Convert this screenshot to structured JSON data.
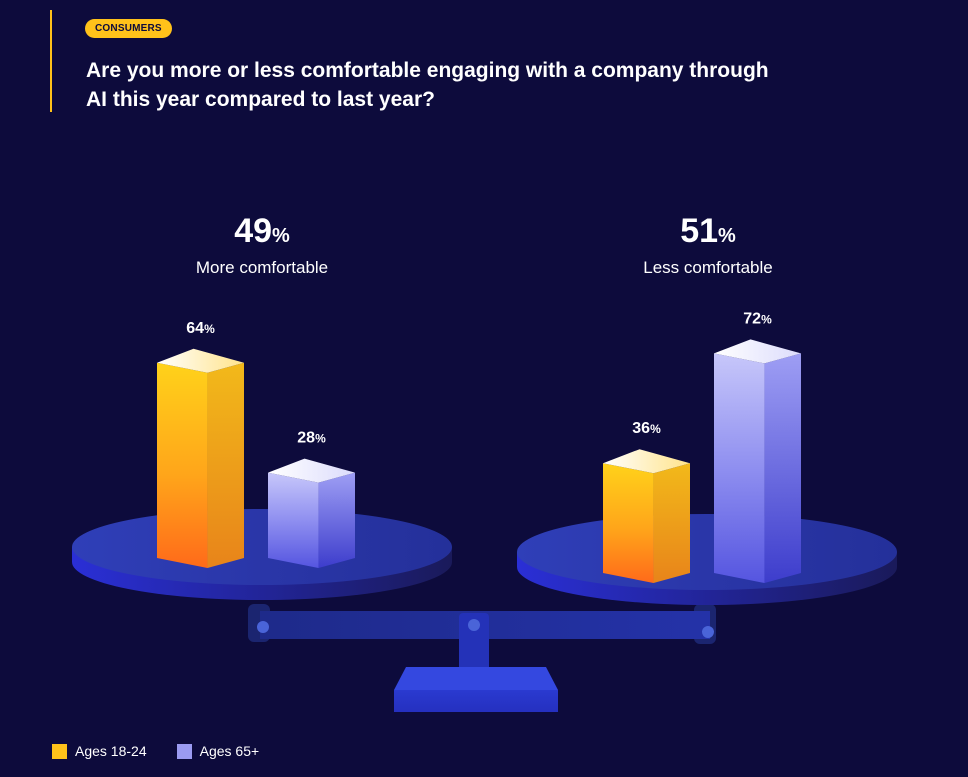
{
  "header": {
    "tag": "CONSUMERS",
    "question": "Are you more or less comfortable engaging with a company through AI this year compared to last year?"
  },
  "groups": [
    {
      "pct": "49",
      "unit": "%",
      "label": "More comfortable"
    },
    {
      "pct": "51",
      "unit": "%",
      "label": "Less comfortable"
    }
  ],
  "legend": [
    {
      "label": "Ages 18-24",
      "color": "#ffc21a"
    },
    {
      "label": "Ages 65+",
      "color": "#9b9bf2"
    }
  ],
  "chart_data": {
    "type": "bar",
    "categories": [
      "More comfortable",
      "Less comfortable"
    ],
    "category_totals": [
      49,
      51
    ],
    "series": [
      {
        "name": "Ages 18-24",
        "values": [
          64,
          36
        ],
        "color": "#ffc21a"
      },
      {
        "name": "Ages 65+",
        "values": [
          28,
          72
        ],
        "color": "#9b9bf2"
      }
    ],
    "value_suffix": "%",
    "ylim": [
      0,
      100
    ],
    "grid": false,
    "legend_position": "bottom-left"
  }
}
